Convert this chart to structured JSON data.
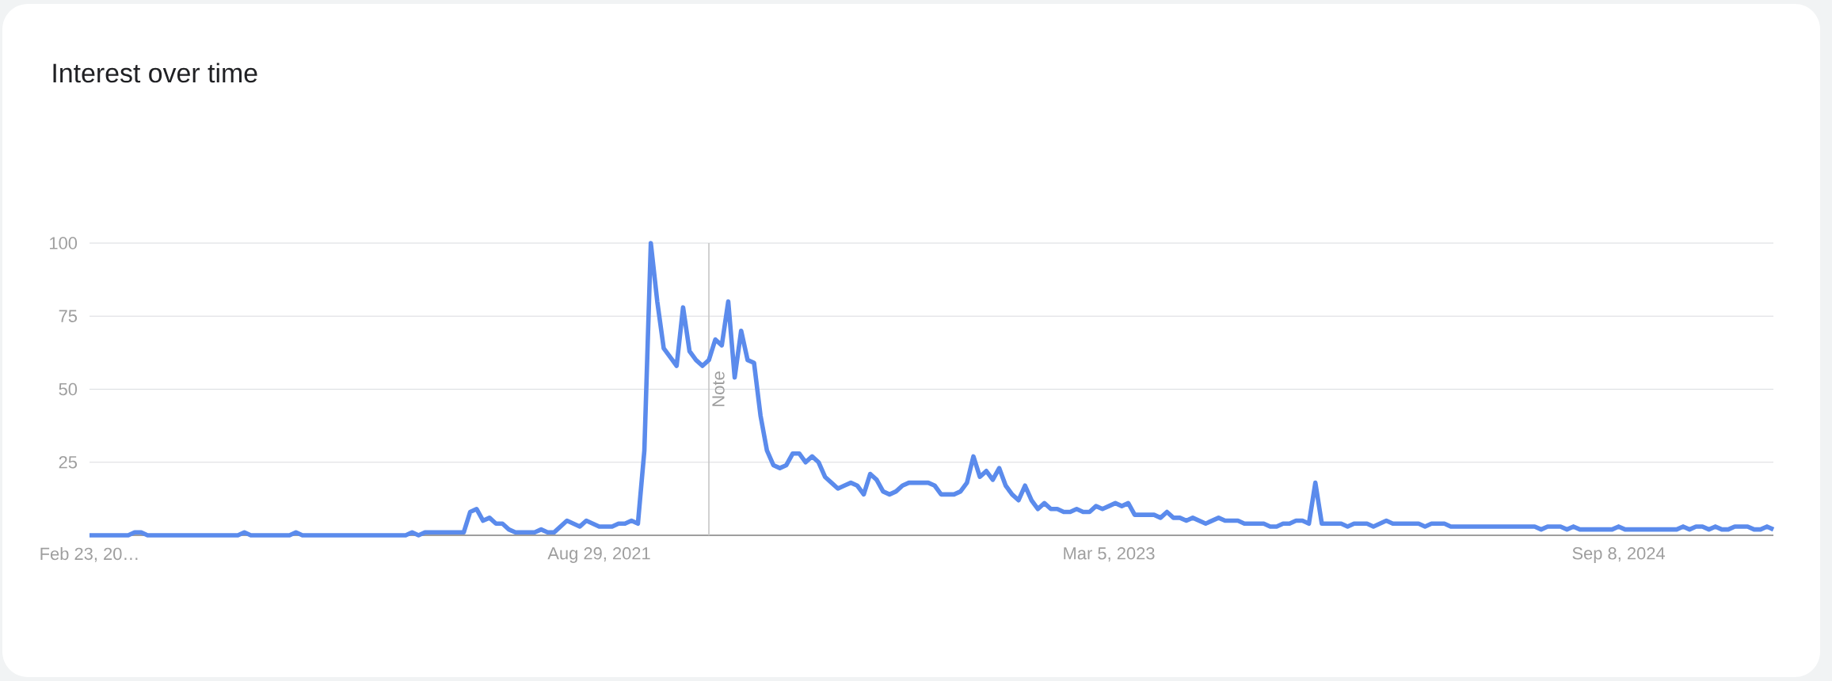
{
  "chart_data": {
    "type": "line",
    "title": "Interest over time",
    "x": [
      "2020-02-23",
      "2020-04-05",
      "2020-04-12",
      "2020-04-19",
      "2020-04-26",
      "2020-08-02",
      "2020-08-09",
      "2020-08-16",
      "2020-09-27",
      "2020-10-04",
      "2020-10-11",
      "2021-01-31",
      "2021-02-07",
      "2021-02-14",
      "2021-02-21",
      "2021-04-04",
      "2021-04-11",
      "2021-04-18",
      "2021-04-25",
      "2021-05-02",
      "2021-05-09",
      "2021-05-16",
      "2021-05-23",
      "2021-05-30",
      "2021-06-20",
      "2021-06-27",
      "2021-07-04",
      "2021-07-11",
      "2021-07-25",
      "2021-08-08",
      "2021-08-15",
      "2021-08-29",
      "2021-09-12",
      "2021-09-19",
      "2021-09-26",
      "2021-10-03",
      "2021-10-10",
      "2021-10-17",
      "2021-10-24",
      "2021-10-31",
      "2021-11-07",
      "2021-11-14",
      "2021-11-21",
      "2021-11-28",
      "2021-12-05",
      "2021-12-12",
      "2021-12-19",
      "2021-12-26",
      "2022-01-02",
      "2022-01-09",
      "2022-01-16",
      "2022-01-23",
      "2022-01-30",
      "2022-02-06",
      "2022-02-13",
      "2022-02-20",
      "2022-02-27",
      "2022-03-06",
      "2022-03-13",
      "2022-03-20",
      "2022-03-27",
      "2022-04-03",
      "2022-04-10",
      "2022-04-17",
      "2022-04-24",
      "2022-05-01",
      "2022-05-08",
      "2022-05-15",
      "2022-05-22",
      "2022-05-29",
      "2022-06-05",
      "2022-06-12",
      "2022-06-19",
      "2022-06-26",
      "2022-07-03",
      "2022-07-10",
      "2022-07-17",
      "2022-07-24",
      "2022-07-31",
      "2022-08-21",
      "2022-08-28",
      "2022-09-04",
      "2022-09-18",
      "2022-09-25",
      "2022-10-02",
      "2022-10-09",
      "2022-10-16",
      "2022-10-23",
      "2022-10-30",
      "2022-11-06",
      "2022-11-13",
      "2022-11-20",
      "2022-11-27",
      "2022-12-04",
      "2022-12-11",
      "2022-12-18",
      "2022-12-25",
      "2023-01-01",
      "2023-01-08",
      "2023-01-15",
      "2023-01-22",
      "2023-01-29",
      "2023-02-05",
      "2023-02-12",
      "2023-02-19",
      "2023-02-26",
      "2023-03-05",
      "2023-03-12",
      "2023-03-19",
      "2023-03-26",
      "2023-04-02",
      "2023-04-23",
      "2023-04-30",
      "2023-05-07",
      "2023-05-14",
      "2023-05-21",
      "2023-05-28",
      "2023-06-04",
      "2023-06-18",
      "2023-07-02",
      "2023-07-09",
      "2023-07-23",
      "2023-07-30",
      "2023-08-20",
      "2023-08-27",
      "2023-09-03",
      "2023-09-10",
      "2023-09-17",
      "2023-09-24",
      "2023-10-01",
      "2023-10-08",
      "2023-10-15",
      "2023-10-22",
      "2023-11-12",
      "2023-11-19",
      "2023-11-26",
      "2023-12-10",
      "2023-12-17",
      "2023-12-31",
      "2024-01-07",
      "2024-02-04",
      "2024-02-11",
      "2024-02-18",
      "2024-03-03",
      "2024-03-10",
      "2024-06-09",
      "2024-06-16",
      "2024-06-23",
      "2024-07-07",
      "2024-07-14",
      "2024-07-21",
      "2024-07-28",
      "2024-09-01",
      "2024-09-08",
      "2024-09-15",
      "2024-11-10",
      "2024-11-17",
      "2024-11-24",
      "2024-12-01",
      "2024-12-08",
      "2024-12-15",
      "2024-12-22",
      "2024-12-29",
      "2025-01-05",
      "2025-01-12",
      "2025-01-26",
      "2025-02-02",
      "2025-02-09",
      "2025-02-16",
      "2025-02-23"
    ],
    "series": [
      {
        "color": "#5b8bec",
        "values": [
          0,
          0,
          1,
          1,
          0,
          0,
          1,
          0,
          0,
          1,
          0,
          0,
          1,
          0,
          1,
          1,
          8,
          9,
          5,
          6,
          4,
          4,
          2,
          1,
          1,
          2,
          1,
          1,
          5,
          3,
          5,
          3,
          3,
          4,
          4,
          5,
          4,
          29,
          100,
          80,
          64,
          61,
          58,
          78,
          63,
          60,
          58,
          60,
          67,
          65,
          80,
          54,
          70,
          60,
          59,
          41,
          29,
          24,
          23,
          24,
          28,
          28,
          25,
          27,
          25,
          20,
          18,
          16,
          17,
          18,
          17,
          14,
          21,
          19,
          15,
          14,
          15,
          17,
          18,
          18,
          17,
          14,
          14,
          15,
          18,
          27,
          20,
          22,
          19,
          23,
          17,
          14,
          12,
          17,
          12,
          9,
          11,
          9,
          9,
          8,
          8,
          9,
          8,
          8,
          10,
          9,
          10,
          11,
          10,
          11,
          7,
          7,
          6,
          8,
          6,
          6,
          5,
          6,
          4,
          6,
          5,
          5,
          4,
          4,
          3,
          3,
          4,
          4,
          5,
          5,
          4,
          18,
          4,
          4,
          3,
          4,
          4,
          3,
          5,
          4,
          4,
          3,
          4,
          4,
          3,
          3,
          2,
          3,
          3,
          2,
          3,
          2,
          2,
          3,
          2,
          2,
          3,
          2,
          3,
          3,
          2,
          3,
          2,
          2,
          3,
          3,
          2,
          2,
          3,
          2
        ]
      }
    ],
    "xlim": [
      "2020-02-23",
      "2025-02-23"
    ],
    "xticks": [
      {
        "value": "2020-02-23",
        "label": "Feb 23, 20…"
      },
      {
        "value": "2021-08-29",
        "label": "Aug 29, 2021"
      },
      {
        "value": "2023-03-05",
        "label": "Mar 5, 2023"
      },
      {
        "value": "2024-09-08",
        "label": "Sep 8, 2024"
      }
    ],
    "ylim": [
      0,
      100
    ],
    "yticks": [
      25,
      50,
      75,
      100
    ],
    "grid": "y",
    "ref_lines": [
      {
        "axis": "x",
        "value": "2021-12-26",
        "label": "Note",
        "color": "#c6c6c6"
      }
    ]
  }
}
